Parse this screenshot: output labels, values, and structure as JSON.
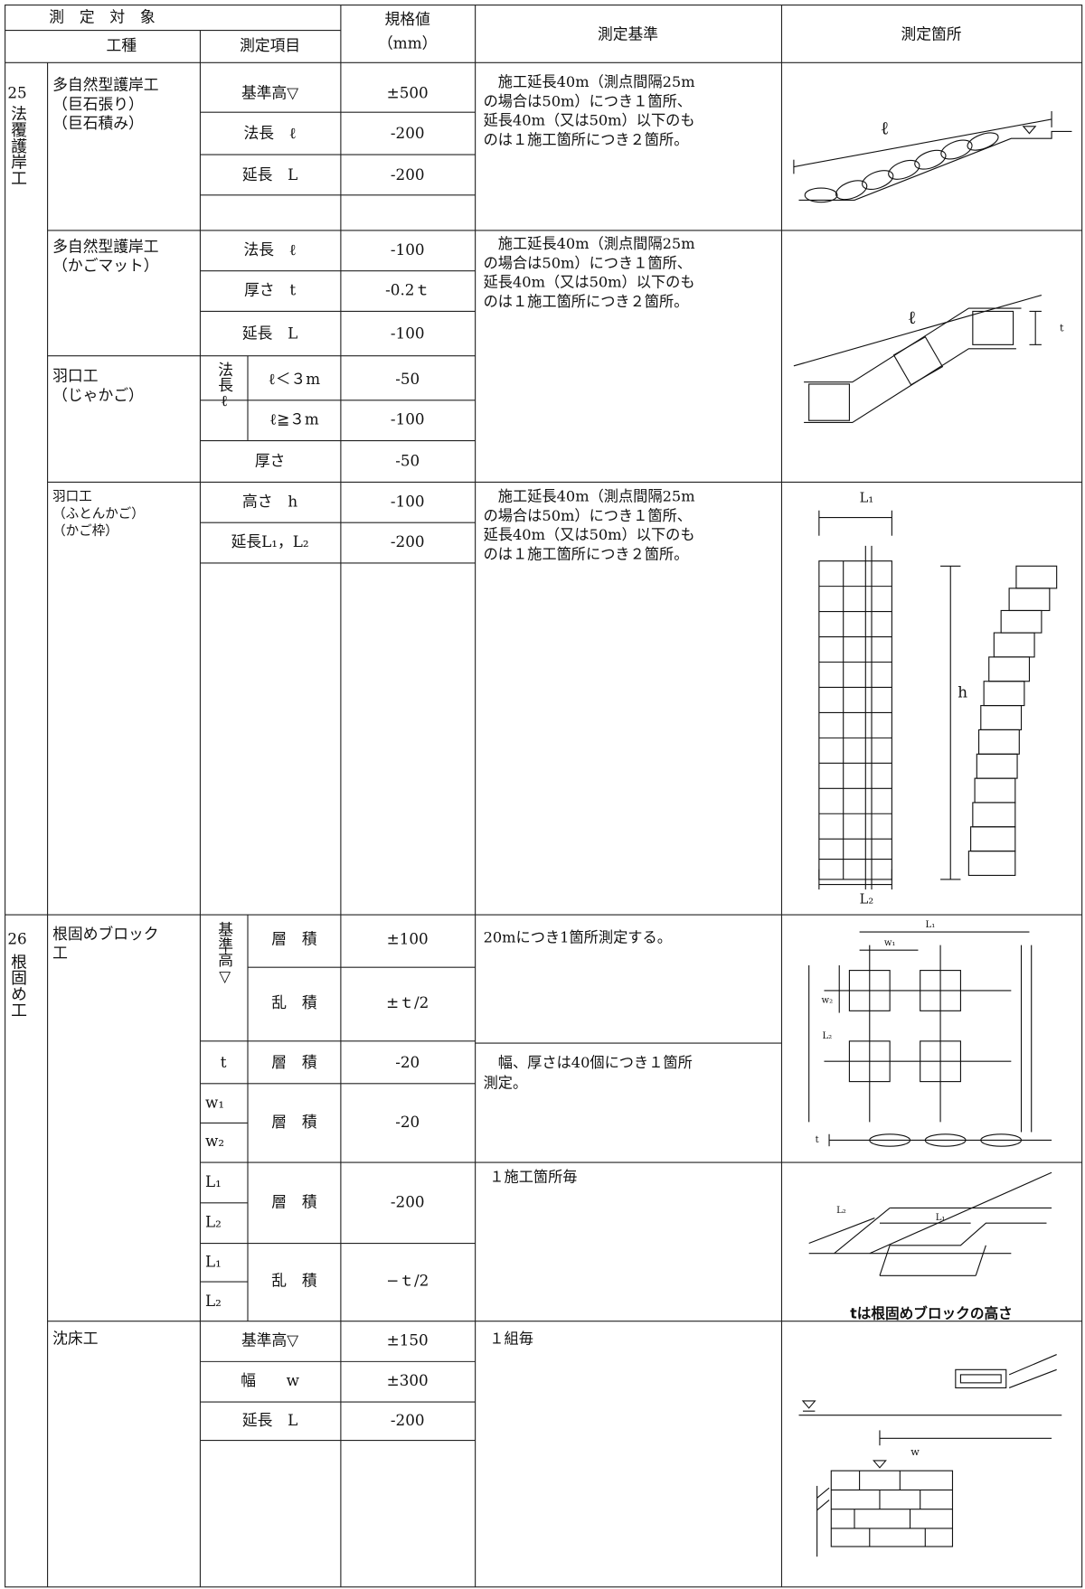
{
  "header": {
    "target": "測　定　対　象",
    "work_type": "工種",
    "item": "測定項目",
    "spec": "規格値",
    "spec_unit": "（mm）",
    "criteria": "測定基準",
    "location": "測定箇所"
  },
  "sections": [
    {
      "number": "25",
      "name": "法覆護岸工",
      "works": [
        {
          "name": [
            "多自然型護岸工",
            "（巨石張り）",
            "（巨石積み）"
          ],
          "items": [
            {
              "item": "基準高▽",
              "spec": "±500"
            },
            {
              "item": "法長　ℓ",
              "spec": "-200"
            },
            {
              "item": "延長　L",
              "spec": "-200"
            }
          ],
          "criteria": [
            "　施工延長40m（測点間隔25m",
            "の場合は50m）につき１箇所、",
            "延長40m（又は50m）以下のも",
            "のは１施工箇所につき２箇所。"
          ],
          "figure_labels": [
            "ℓ"
          ]
        },
        {
          "name": [
            "多自然型護岸工",
            "（かごマット）"
          ],
          "items": [
            {
              "item": "法長　ℓ",
              "spec": "-100"
            },
            {
              "item": "厚さ　t",
              "spec": "-0.2ｔ"
            },
            {
              "item": "延長　L",
              "spec": "-100"
            }
          ],
          "criteria": [
            "　施工延長40m（測点間隔25m",
            "の場合は50m）につき１箇所、",
            "延長40m（又は50m）以下のも",
            "のは１施工箇所につき２箇所。"
          ],
          "figure_labels": [
            "ℓ",
            "t"
          ]
        },
        {
          "name": [
            "羽口工",
            "（じゃかご）"
          ],
          "item_group": "法長ℓ",
          "items": [
            {
              "item": "ℓ＜３m",
              "spec": "-50"
            },
            {
              "item": "ℓ≧３m",
              "spec": "-100"
            },
            {
              "item": "厚さ",
              "spec": "-50"
            }
          ]
        },
        {
          "name": [
            "羽口工",
            "（ふとんかご）",
            "（かご枠）"
          ],
          "items": [
            {
              "item": "高さ　h",
              "spec": "-100"
            },
            {
              "item": "延長L₁，L₂",
              "spec": "-200"
            }
          ],
          "criteria": [
            "　施工延長40m（測点間隔25m",
            "の場合は50m）につき１箇所、",
            "延長40m（又は50m）以下のも",
            "のは１施工箇所につき２箇所。"
          ],
          "figure_labels": [
            "L₁",
            "h",
            "L₂"
          ]
        }
      ]
    },
    {
      "number": "26",
      "name": "根固め工",
      "works": [
        {
          "name": [
            "根固めブロック",
            "工"
          ],
          "items": [
            {
              "group": "基準高▽",
              "item": "層　積",
              "spec": "±100"
            },
            {
              "item": "乱　積",
              "spec": "±ｔ/2"
            },
            {
              "group": "t",
              "item": "層　積",
              "spec": "-20"
            },
            {
              "group": [
                "w₁",
                "w₂"
              ],
              "item": "層　積",
              "spec": "-20"
            },
            {
              "group": [
                "L₁",
                "L₂"
              ],
              "item": "層　積",
              "spec": "-200"
            },
            {
              "group": [
                "L₁",
                "L₂"
              ],
              "item": "乱　積",
              "spec": "−ｔ/2"
            }
          ],
          "criteria": [
            "20mにつき1箇所測定する。",
            "　幅、厚さは40個につき１箇所",
            "測定。",
            "１施工箇所毎"
          ],
          "figure_labels": [
            "L₁",
            "w₁",
            "w₂",
            "L₂",
            "t",
            "L₂",
            "L₁"
          ],
          "figure_note": "tは根固めブロックの高さ"
        },
        {
          "name": [
            "沈床工"
          ],
          "items": [
            {
              "item": "基準高▽",
              "spec": "±150"
            },
            {
              "item": "幅　　w",
              "spec": "±300"
            },
            {
              "item": "延長　L",
              "spec": "-200"
            }
          ],
          "criteria": [
            "１組毎"
          ],
          "figure_labels": [
            "w"
          ]
        }
      ]
    }
  ]
}
